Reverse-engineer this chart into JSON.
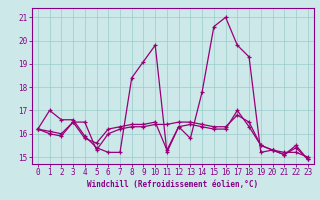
{
  "background_color": "#cce8e8",
  "plot_bg_color": "#cce8e8",
  "line_color": "#990077",
  "grid_color": "#99cccc",
  "xlabel": "Windchill (Refroidissement éolien,°C)",
  "xlim_min": -0.5,
  "xlim_max": 23.5,
  "ylim_min": 14.7,
  "ylim_max": 21.4,
  "yticks": [
    15,
    16,
    17,
    18,
    19,
    20,
    21
  ],
  "xticks": [
    0,
    1,
    2,
    3,
    4,
    5,
    6,
    7,
    8,
    9,
    10,
    11,
    12,
    13,
    14,
    15,
    16,
    17,
    18,
    19,
    20,
    21,
    22,
    23
  ],
  "series": [
    [
      16.2,
      17.0,
      16.6,
      16.6,
      15.9,
      15.4,
      15.2,
      15.2,
      18.4,
      19.1,
      19.8,
      15.2,
      16.3,
      15.8,
      17.8,
      20.6,
      21.0,
      19.8,
      19.3,
      15.2,
      15.3,
      15.1,
      15.5,
      14.9
    ],
    [
      16.2,
      16.0,
      15.9,
      16.5,
      16.5,
      15.3,
      16.0,
      16.2,
      16.3,
      16.3,
      16.4,
      16.4,
      16.5,
      16.5,
      16.4,
      16.3,
      16.3,
      16.8,
      16.5,
      15.5,
      15.3,
      15.2,
      15.2,
      15.0
    ],
    [
      16.2,
      16.1,
      16.0,
      16.5,
      15.8,
      15.6,
      16.2,
      16.3,
      16.4,
      16.4,
      16.5,
      15.3,
      16.3,
      16.4,
      16.3,
      16.2,
      16.2,
      17.0,
      16.3,
      15.5,
      15.3,
      15.1,
      15.4,
      14.9
    ]
  ],
  "tick_fontsize": 5.5,
  "xlabel_fontsize": 5.5,
  "tick_color": "#880088",
  "spine_color": "#880088",
  "marker": "+",
  "markersize": 3.0,
  "linewidth": 0.9
}
